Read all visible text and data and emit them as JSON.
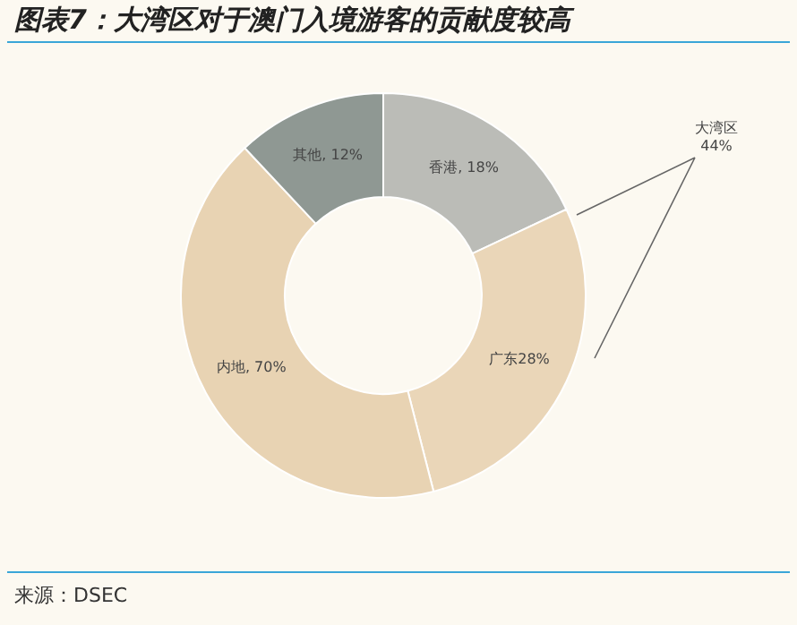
{
  "chart_data": {
    "type": "donut",
    "title": "图表7：大湾区对于澳门入境游客的贡献度较高",
    "categories": [
      "香港, 18%",
      "广东28%",
      "内地, 70%",
      "其他, 12%"
    ],
    "values": [
      18,
      28,
      42,
      12
    ],
    "colors": [
      "#bbbcb7",
      "#ead6b8",
      "#e8d3b3",
      "#8f9893"
    ],
    "annotations": [
      "大湾区\n44%",
      "来源：DSEC"
    ]
  }
}
